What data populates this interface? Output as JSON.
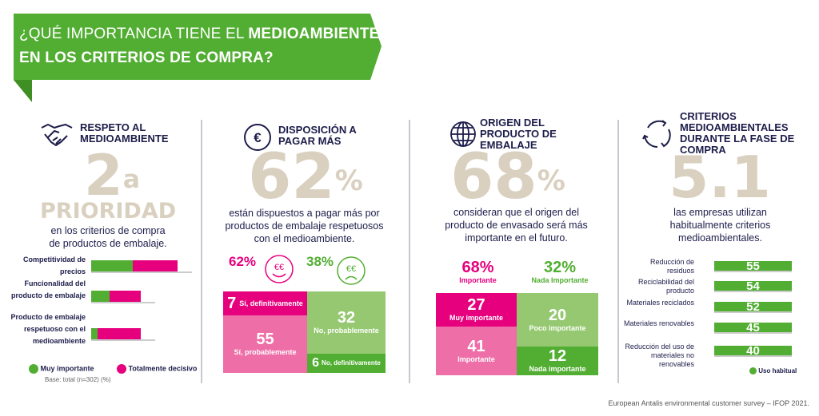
{
  "header": {
    "title_regular": "¿QUÉ IMPORTANCIA TIENE EL",
    "title_bold": "MEDIOAMBIENTE",
    "title_line2": "EN LOS CRITERIOS DE COMPRA?"
  },
  "colors": {
    "green": "#52ae32",
    "light_green": "#95c870",
    "pink": "#e6007e",
    "light_pink": "#ee6ea8",
    "navy": "#1d1d4b",
    "beige": "#d9d0bf"
  },
  "panel1": {
    "icon": "handshake-icon",
    "title": "RESPETO AL MEDIOAMBIENTE",
    "big": "2",
    "big_sup": "a",
    "big_word": "PRIORIDAD",
    "desc1": "en los criterios de compra",
    "desc2": "de productos de embalaje.",
    "legend": [
      "Muy importante",
      "Totalmente decisivo"
    ],
    "base": "Base: total (n=302) (%)"
  },
  "panel2": {
    "icon": "euro-coin-icon",
    "title": "DISPOSICIÓN A PAGAR MÁS",
    "big": "62",
    "big_sup": "%",
    "desc": "están dispuestos a pagar más por productos de embalaje respetuosos con el medioambiente.",
    "yes_pct": "62%",
    "no_pct": "38%",
    "happy_icon": "happy-euro-face-icon",
    "sad_icon": "sad-euro-face-icon"
  },
  "panel3": {
    "icon": "globe-icon",
    "title": "ORIGEN DEL PRODUCTO DE EMBALAJE",
    "big": "68",
    "big_sup": "%",
    "desc": "consideran que el origen del producto de envasado será más importante en el futuro.",
    "imp_pct": "68%",
    "imp_label": "Importante",
    "nada_pct": "32%",
    "nada_label": "Nada Importante"
  },
  "panel4": {
    "icon": "recycle-icon",
    "title": "CRITERIOS MEDIOAMBIENTALES DURANTE LA FASE DE COMPRA",
    "big": "5.1",
    "desc": "las empresas utilizan habitualmente criterios medioambientales.",
    "legend": "Uso habitual"
  },
  "footer": "European Antalis environmental customer survey – IFOP 2021.",
  "chart_data": [
    {
      "type": "bar",
      "stacked": true,
      "orientation": "horizontal",
      "categories": [
        "Competitividad de precios",
        "Funcionalidad del producto de embalaje",
        "Producto de embalaje respetuoso con el medioambiente"
      ],
      "series": [
        {
          "name": "Muy importante",
          "values": [
            41,
            18,
            6
          ]
        },
        {
          "name": "Totalmente decisivo",
          "values": [
            45,
            31,
            43
          ]
        }
      ]
    },
    {
      "type": "table",
      "cells": [
        {
          "value": "7",
          "label": "Sí, definitivamente"
        },
        {
          "value": "55",
          "label": "Sí, probablemente"
        },
        {
          "value": "32",
          "label": "No, probablemente"
        },
        {
          "value": "6",
          "label": "No, definitivamente"
        }
      ]
    },
    {
      "type": "table",
      "cells": [
        {
          "value": "27",
          "label": "Muy importante"
        },
        {
          "value": "41",
          "label": "Importante"
        },
        {
          "value": "20",
          "label": "Poco importante"
        },
        {
          "value": "12",
          "label": "Nada importante"
        }
      ]
    },
    {
      "type": "bar",
      "orientation": "horizontal",
      "categories": [
        "Reducción de residuos",
        "Reciclabilidad del producto",
        "Materiales reciclados",
        "Materiales renovables",
        "Reducción del uso de materiales no renovables"
      ],
      "series": [
        {
          "name": "Uso habitual",
          "values": [
            55,
            54,
            52,
            45,
            40
          ]
        }
      ]
    }
  ]
}
